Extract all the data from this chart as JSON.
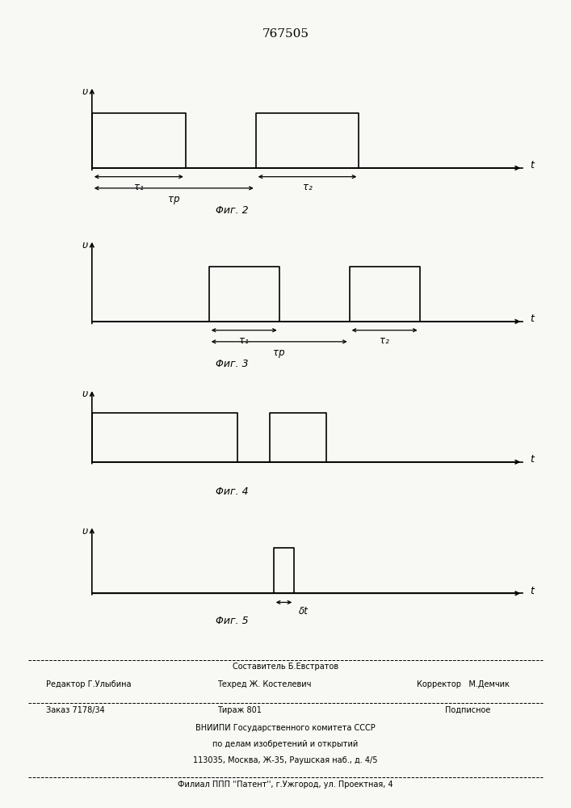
{
  "title": "767505",
  "fig2_label": "Φиг. 2",
  "fig3_label": "Φиг. 3",
  "fig4_label": "Φиг. 4",
  "fig5_label": "Φиг. 5",
  "ylabel": "υ",
  "xlabel": "t",
  "tau1": "τ₁",
  "tau2": "τ₂",
  "taup": "τр",
  "delta_t": "δt",
  "bg_color": "#f8f8f4",
  "line_color": "#000000",
  "footer_editor": "Редактор Г.Улыбина",
  "footer_composer": "Составитель Б.Евстратов",
  "footer_tech": "Техред Ж. Костелевич",
  "footer_corrector": "Корректор   М.Демчик",
  "footer_order": "Заказ 7178/34",
  "footer_tirazh": "Тираж 801",
  "footer_podp": "Подписное",
  "footer_vniip1": "ВНИИПИ Государственного комитета СССР",
  "footer_vniip2": "по делам изобретений и открытий",
  "footer_addr": "113035, Москва, Ж-35, Раушская наб., д. 4/5",
  "footer_filial": "Филиал ППП ''Патент'', г.Ужгород, ул. Проектная, 4"
}
